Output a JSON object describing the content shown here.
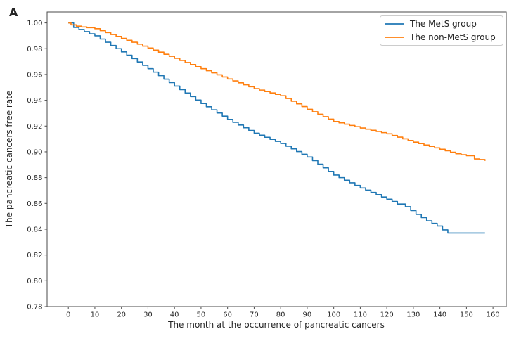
{
  "figure": {
    "panel_label": "A",
    "background": "#ffffff"
  },
  "style": {
    "spine_color": "#4a4a4a",
    "tick_color": "#4a4a4a",
    "text_color": "#262626",
    "legend_border_color": "#cccccc",
    "legend_fill": "#ffffff"
  },
  "chart_data": {
    "type": "line",
    "subtype": "kaplan-meier-step",
    "title": "",
    "xlabel": "The month at the occurrence of pancreatic cancers",
    "ylabel": "The pancreatic cancers free rate",
    "xlim": [
      -8,
      165
    ],
    "ylim": [
      0.78,
      1.0085
    ],
    "grid": false,
    "x_ticks": [
      0,
      10,
      20,
      30,
      40,
      50,
      60,
      70,
      80,
      90,
      100,
      110,
      120,
      130,
      140,
      150,
      160
    ],
    "y_ticks": [
      "0.78",
      "0.80",
      "0.82",
      "0.84",
      "0.86",
      "0.88",
      "0.90",
      "0.92",
      "0.94",
      "0.96",
      "0.98",
      "1.00"
    ],
    "legend": {
      "position": "upper-right",
      "entries": [
        {
          "label": "The MetS group",
          "color": "#1f77b4"
        },
        {
          "label": "The non-MetS group",
          "color": "#ff7f0e"
        }
      ]
    },
    "series": [
      {
        "name": "The MetS group",
        "color": "#1f77b4",
        "points": [
          [
            0,
            1.0
          ],
          [
            2,
            0.9965
          ],
          [
            4,
            0.9949
          ],
          [
            6,
            0.9933
          ],
          [
            8,
            0.9916
          ],
          [
            10,
            0.99
          ],
          [
            12,
            0.9875
          ],
          [
            14,
            0.985
          ],
          [
            16,
            0.9825
          ],
          [
            18,
            0.98
          ],
          [
            20,
            0.9775
          ],
          [
            22,
            0.9749
          ],
          [
            24,
            0.9723
          ],
          [
            26,
            0.9697
          ],
          [
            28,
            0.9671
          ],
          [
            30,
            0.9645
          ],
          [
            32,
            0.9618
          ],
          [
            34,
            0.9591
          ],
          [
            36,
            0.9564
          ],
          [
            38,
            0.9537
          ],
          [
            40,
            0.951
          ],
          [
            42,
            0.9483
          ],
          [
            44,
            0.9456
          ],
          [
            46,
            0.9429
          ],
          [
            48,
            0.9402
          ],
          [
            50,
            0.9375
          ],
          [
            52,
            0.935
          ],
          [
            54,
            0.9326
          ],
          [
            56,
            0.9301
          ],
          [
            58,
            0.9277
          ],
          [
            60,
            0.9252
          ],
          [
            62,
            0.9229
          ],
          [
            64,
            0.9208
          ],
          [
            66,
            0.9187
          ],
          [
            68,
            0.9166
          ],
          [
            70,
            0.9145
          ],
          [
            72,
            0.9129
          ],
          [
            74,
            0.9113
          ],
          [
            76,
            0.9097
          ],
          [
            78,
            0.9081
          ],
          [
            80,
            0.9065
          ],
          [
            82,
            0.9044
          ],
          [
            84,
            0.9023
          ],
          [
            86,
            0.9002
          ],
          [
            88,
            0.8981
          ],
          [
            90,
            0.896
          ],
          [
            92,
            0.8932
          ],
          [
            94,
            0.8904
          ],
          [
            96,
            0.8876
          ],
          [
            98,
            0.8848
          ],
          [
            100,
            0.882
          ],
          [
            102,
            0.88
          ],
          [
            104,
            0.878
          ],
          [
            106,
            0.876
          ],
          [
            108,
            0.874
          ],
          [
            110,
            0.872
          ],
          [
            112,
            0.8703
          ],
          [
            114,
            0.8685
          ],
          [
            116,
            0.8668
          ],
          [
            118,
            0.865
          ],
          [
            120,
            0.8633
          ],
          [
            122,
            0.8615
          ],
          [
            124,
            0.8595
          ],
          [
            127,
            0.8575
          ],
          [
            129,
            0.8545
          ],
          [
            131,
            0.8515
          ],
          [
            133,
            0.849
          ],
          [
            135,
            0.8465
          ],
          [
            137,
            0.8445
          ],
          [
            139,
            0.8425
          ],
          [
            141,
            0.8395
          ],
          [
            143,
            0.837
          ],
          [
            157,
            0.837
          ]
        ]
      },
      {
        "name": "The non-MetS group",
        "color": "#ff7f0e",
        "points": [
          [
            0,
            1.0
          ],
          [
            1,
            0.9985
          ],
          [
            3,
            0.9975
          ],
          [
            5,
            0.9969
          ],
          [
            7,
            0.9963
          ],
          [
            10,
            0.9955
          ],
          [
            12,
            0.994
          ],
          [
            14,
            0.9925
          ],
          [
            16,
            0.991
          ],
          [
            18,
            0.9895
          ],
          [
            20,
            0.988
          ],
          [
            22,
            0.9865
          ],
          [
            24,
            0.985
          ],
          [
            26,
            0.9835
          ],
          [
            28,
            0.982
          ],
          [
            30,
            0.9805
          ],
          [
            32,
            0.9789
          ],
          [
            34,
            0.9773
          ],
          [
            36,
            0.9757
          ],
          [
            38,
            0.9741
          ],
          [
            40,
            0.9725
          ],
          [
            42,
            0.9709
          ],
          [
            44,
            0.9693
          ],
          [
            46,
            0.9677
          ],
          [
            48,
            0.9661
          ],
          [
            50,
            0.9645
          ],
          [
            52,
            0.9629
          ],
          [
            54,
            0.9613
          ],
          [
            56,
            0.9597
          ],
          [
            58,
            0.9581
          ],
          [
            60,
            0.9565
          ],
          [
            62,
            0.955
          ],
          [
            64,
            0.9535
          ],
          [
            66,
            0.952
          ],
          [
            68,
            0.9505
          ],
          [
            70,
            0.949
          ],
          [
            72,
            0.9479
          ],
          [
            74,
            0.9468
          ],
          [
            76,
            0.9457
          ],
          [
            78,
            0.9446
          ],
          [
            80,
            0.9435
          ],
          [
            82,
            0.9414
          ],
          [
            84,
            0.9393
          ],
          [
            86,
            0.9372
          ],
          [
            88,
            0.9351
          ],
          [
            90,
            0.933
          ],
          [
            92,
            0.9311
          ],
          [
            94,
            0.9292
          ],
          [
            96,
            0.9273
          ],
          [
            98,
            0.9254
          ],
          [
            100,
            0.9235
          ],
          [
            102,
            0.9225
          ],
          [
            104,
            0.9215
          ],
          [
            106,
            0.9205
          ],
          [
            108,
            0.9195
          ],
          [
            110,
            0.9185
          ],
          [
            112,
            0.9176
          ],
          [
            114,
            0.9167
          ],
          [
            116,
            0.9158
          ],
          [
            118,
            0.9149
          ],
          [
            120,
            0.914
          ],
          [
            122,
            0.9127
          ],
          [
            124,
            0.9114
          ],
          [
            126,
            0.9101
          ],
          [
            128,
            0.9088
          ],
          [
            130,
            0.9075
          ],
          [
            132,
            0.9064
          ],
          [
            134,
            0.9053
          ],
          [
            136,
            0.9042
          ],
          [
            138,
            0.9031
          ],
          [
            140,
            0.902
          ],
          [
            142,
            0.9008
          ],
          [
            144,
            0.8997
          ],
          [
            146,
            0.8985
          ],
          [
            148,
            0.8978
          ],
          [
            150,
            0.897
          ],
          [
            153,
            0.8945
          ],
          [
            155,
            0.894
          ],
          [
            157,
            0.893
          ]
        ]
      }
    ]
  }
}
